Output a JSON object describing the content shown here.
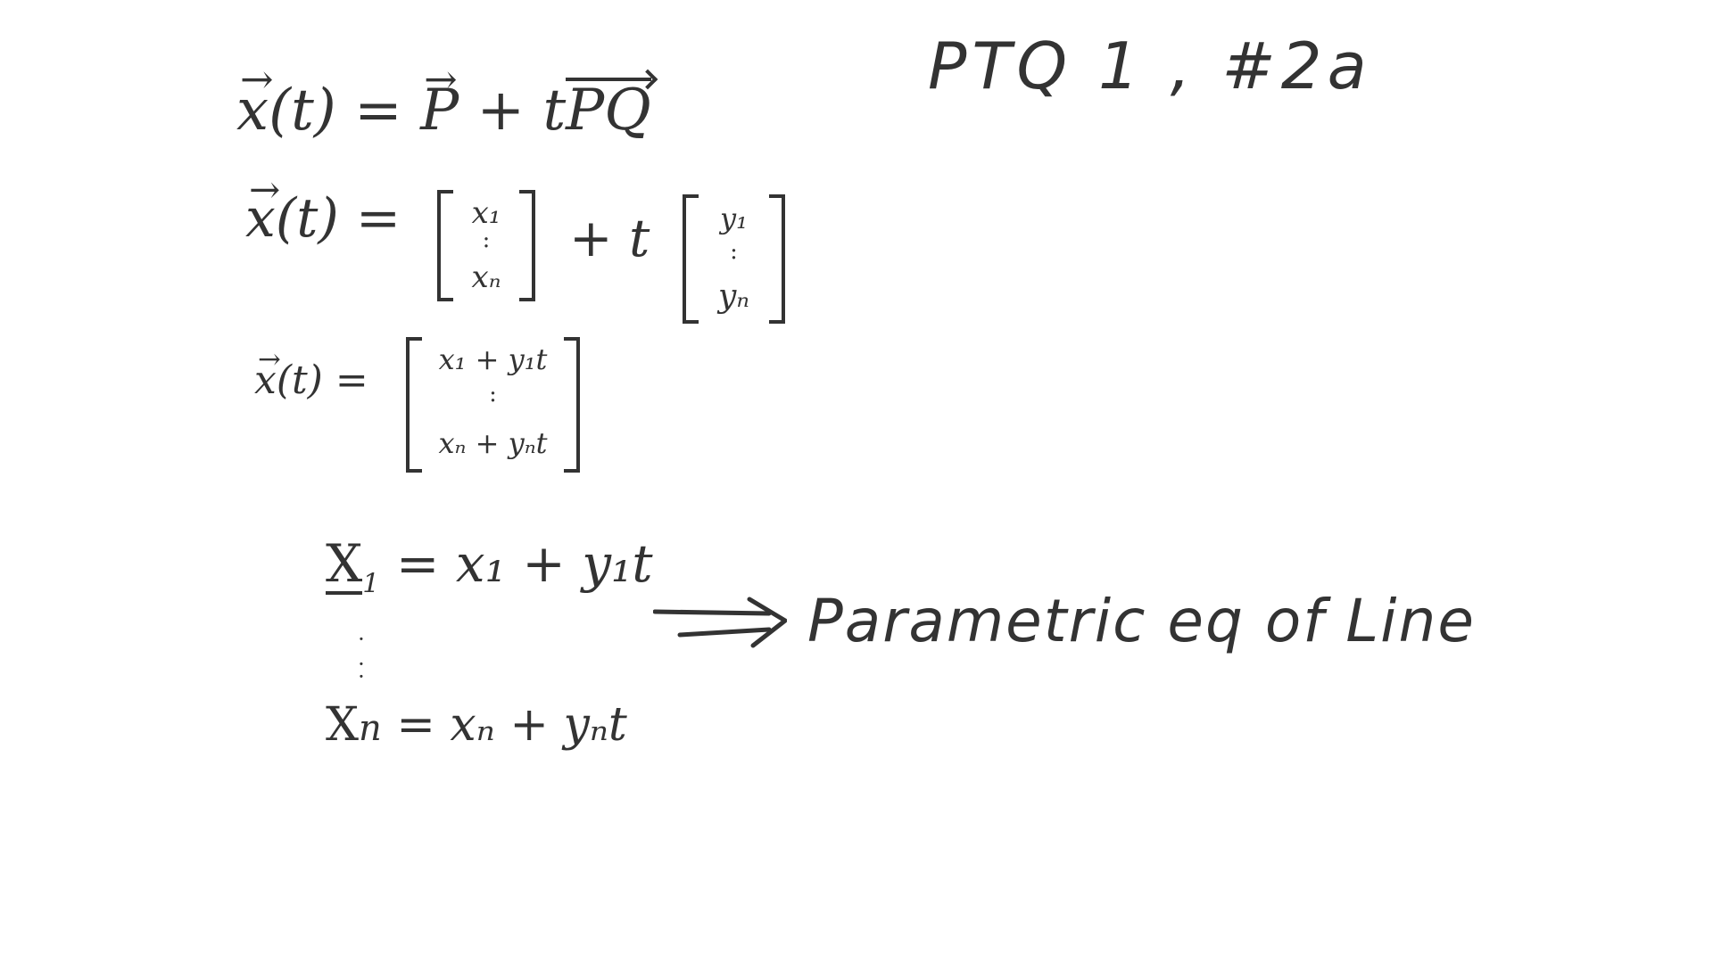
{
  "title": "PTQ 1 , #2a",
  "equation1": {
    "lhs": "x",
    "arg": "(t) = ",
    "p": "P",
    "plus": " + t",
    "pq": "PQ"
  },
  "equation2": {
    "lhs": "x",
    "arg": "(t) =",
    "matrix_a": {
      "top": "x₁",
      "bottom": "xₙ"
    },
    "plus_t": "+ t",
    "matrix_b": {
      "top": "y₁",
      "bottom": "yₙ"
    }
  },
  "equation3": {
    "lhs": "x",
    "arg": "(t) =",
    "matrix": {
      "top": "x₁ + y₁t",
      "bottom": "xₙ + yₙt"
    }
  },
  "system": {
    "row1_var": "X",
    "row1_sub": "1",
    "row1_rhs": " = x₁ + y₁t",
    "rowN_var": "X",
    "rowN_sub": "n",
    "rowN_rhs": " = xₙ + yₙt"
  },
  "caption": "Parametric eq of Line",
  "colors": {
    "ink": "#333333",
    "background": "#ffffff"
  }
}
